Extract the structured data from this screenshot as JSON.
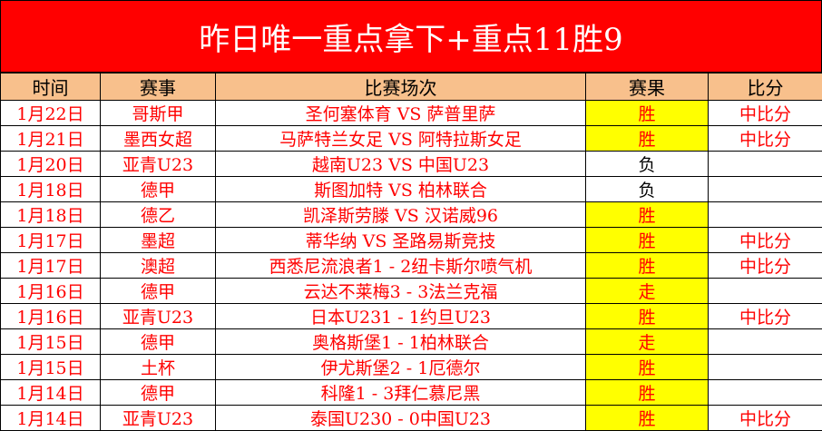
{
  "title": "昨日唯一重点拿下+重点11胜9",
  "colors": {
    "title_bg": "#ff0000",
    "header_bg": "#f8c08c",
    "highlight": "#ffff00",
    "text": "#ff0000"
  },
  "headers": [
    "时间",
    "赛事",
    "比赛场次",
    "赛果",
    "比分"
  ],
  "rows": [
    {
      "date": "1月22日",
      "league": "哥斯甲",
      "match": "圣何塞体育 VS 萨普里萨",
      "result": "胜",
      "score": "中比分"
    },
    {
      "date": "1月21日",
      "league": "墨西女超",
      "match": "马萨特兰女足 VS 阿特拉斯女足",
      "result": "胜",
      "score": "中比分"
    },
    {
      "date": "1月20日",
      "league": "亚青U23",
      "match": "越南U23 VS 中国U23",
      "result": "负",
      "score": ""
    },
    {
      "date": "1月18日",
      "league": "德甲",
      "match": "斯图加特 VS 柏林联合",
      "result": "负",
      "score": ""
    },
    {
      "date": "1月18日",
      "league": "德乙",
      "match": "凯泽斯劳滕 VS 汉诺威96",
      "result": "胜",
      "score": ""
    },
    {
      "date": "1月17日",
      "league": "墨超",
      "match": "蒂华纳 VS 圣路易斯竞技",
      "result": "胜",
      "score": "中比分"
    },
    {
      "date": "1月17日",
      "league": "澳超",
      "match": "西悉尼流浪者1 - 2纽卡斯尔喷气机",
      "result": "胜",
      "score": "中比分"
    },
    {
      "date": "1月16日",
      "league": "德甲",
      "match": "云达不莱梅3 - 3法兰克福",
      "result": "走",
      "score": ""
    },
    {
      "date": "1月16日",
      "league": "亚青U23",
      "match": "日本U231 - 1约旦U23",
      "result": "胜",
      "score": "中比分"
    },
    {
      "date": "1月15日",
      "league": "德甲",
      "match": "奥格斯堡1 - 1柏林联合",
      "result": "走",
      "score": ""
    },
    {
      "date": "1月15日",
      "league": "土杯",
      "match": "伊尤斯堡2 - 1厄德尔",
      "result": "胜",
      "score": ""
    },
    {
      "date": "1月14日",
      "league": "德甲",
      "match": "科隆1 - 3拜仁慕尼黑",
      "result": "胜",
      "score": ""
    },
    {
      "date": "1月14日",
      "league": "亚青U23",
      "match": "泰国U230 - 0中国U23",
      "result": "胜",
      "score": "中比分"
    }
  ]
}
